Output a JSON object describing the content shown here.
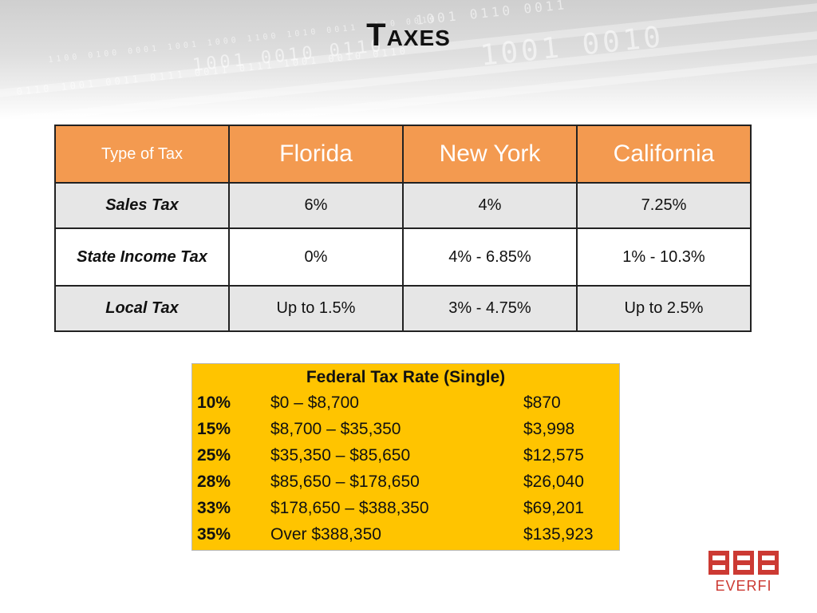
{
  "slide": {
    "title": "Taxes"
  },
  "state_table": {
    "header": [
      "Type of Tax",
      "Florida",
      "New York",
      "California"
    ],
    "rows": [
      {
        "type": "Sales Tax",
        "florida": "6%",
        "new_york": "4%",
        "california": "7.25%"
      },
      {
        "type": "State Income Tax",
        "florida": "0%",
        "new_york": "4% - 6.85%",
        "california": "1% - 10.3%"
      },
      {
        "type": "Local Tax",
        "florida": "Up to 1.5%",
        "new_york": "3% - 4.75%",
        "california": "Up to 2.5%"
      }
    ],
    "colors": {
      "header_bg": "#f39a50",
      "header_text": "#ffffff",
      "shade_row": "#e6e6e6"
    }
  },
  "federal_table": {
    "title": "Federal Tax Rate (Single)",
    "rows": [
      {
        "rate": "10%",
        "range": "$0 – $8,700",
        "amount": "$870"
      },
      {
        "rate": "15%",
        "range": "$8,700 – $35,350",
        "amount": "$3,998"
      },
      {
        "rate": "25%",
        "range": "$35,350 – $85,650",
        "amount": "$12,575"
      },
      {
        "rate": "28%",
        "range": "$85,650 – $178,650",
        "amount": "$26,040"
      },
      {
        "rate": "33%",
        "range": "$178,650 – $388,350",
        "amount": "$69,201"
      },
      {
        "rate": "35%",
        "range": "Over $388,350",
        "amount": "$135,923"
      }
    ],
    "background": "#ffc400"
  },
  "logo": {
    "text": "EVERFI",
    "icon": "everfi-logo-icon",
    "color": "#cc3a33"
  }
}
